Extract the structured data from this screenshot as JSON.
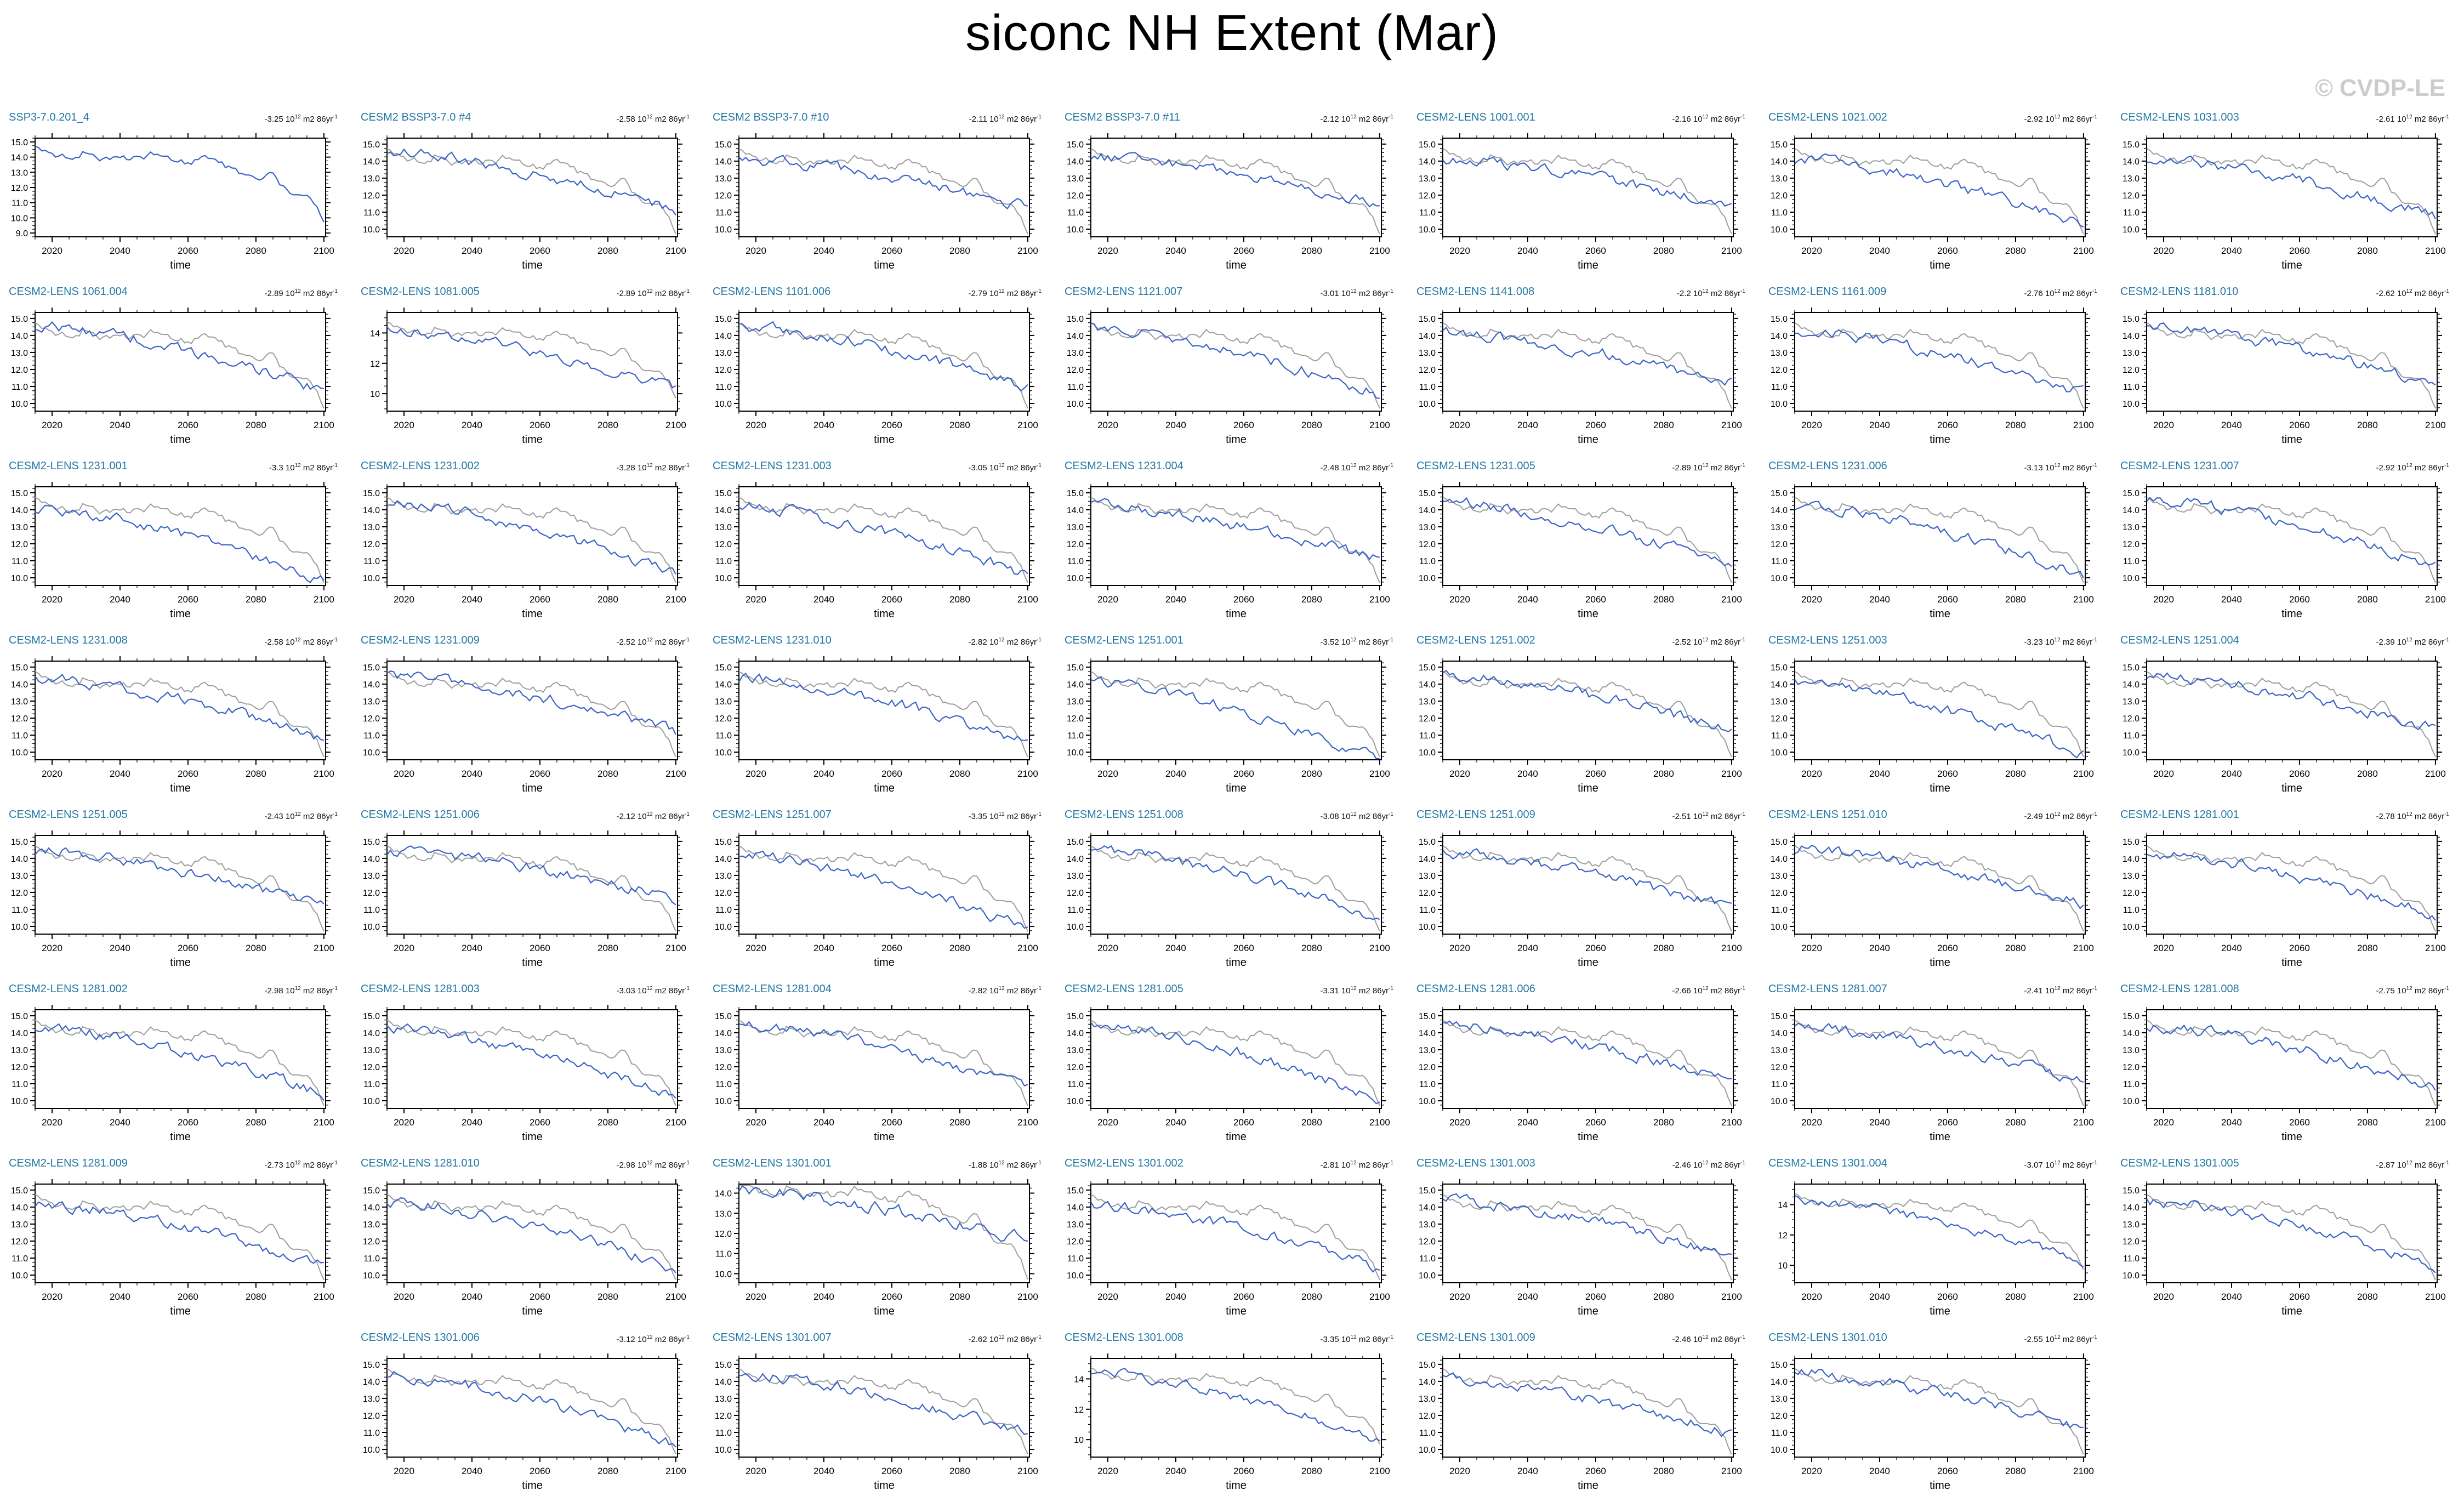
{
  "page": {
    "title": "siconc NH Extent (Mar)",
    "watermark": "© CVDP-LE"
  },
  "colors": {
    "member_line": "#3c64c8",
    "reference_line": "#9e9e9e",
    "panel_title": "#2278a5",
    "axis": "#000000",
    "watermark": "#cccccc"
  },
  "trend_units": {
    "a": " 10",
    "e1": "12",
    "b": " m2 86yr",
    "e2": "-1"
  },
  "chart_data": {
    "type": "line",
    "title": "siconc NH Extent (Mar)",
    "xlabel": "time",
    "ylabel": "",
    "x_range": [
      2015,
      2100
    ],
    "x_major_ticks": [
      2020,
      2040,
      2060,
      2080,
      2100
    ],
    "x_minor_step": 5,
    "grid": false,
    "legend": "none",
    "units": "10^12 m2",
    "trend_units_label": "10^12 m2 86yr^-1",
    "series_meaning": {
      "blue": "ensemble member NH sea-ice extent (March)",
      "gray": "reference SSP3-7.0.201_4 NH sea-ice extent (March)"
    },
    "x_years_sampled": [
      2015,
      2020,
      2025,
      2030,
      2035,
      2040,
      2045,
      2050,
      2055,
      2060,
      2065,
      2070,
      2075,
      2080,
      2085,
      2090,
      2095,
      2100
    ],
    "reference_series": {
      "name": "SSP3-7.0.201_4",
      "values": [
        14.55,
        14.2,
        14.0,
        14.45,
        13.9,
        14.1,
        13.9,
        14.2,
        13.9,
        13.7,
        13.9,
        13.55,
        13.0,
        12.6,
        12.85,
        11.6,
        11.75,
        10.0
      ]
    },
    "ystyles": {
      "std": {
        "min": 9.55,
        "max": 15.35,
        "labels": [
          10,
          11,
          12,
          13,
          14,
          15
        ],
        "fmt": 1,
        "minor": 0.25
      },
      "first": {
        "min": 8.75,
        "max": 15.25,
        "labels": [
          9,
          10,
          11,
          12,
          13,
          14,
          15
        ],
        "fmt": 1,
        "minor": 0.25
      },
      "even": {
        "min": 8.85,
        "max": 15.35,
        "labels": [
          10,
          12,
          14
        ],
        "fmt": 0,
        "minor": 0.5
      },
      "low": {
        "min": 9.55,
        "max": 14.45,
        "labels": [
          10,
          11,
          12,
          13,
          14
        ],
        "fmt": 1,
        "minor": 0.25
      }
    },
    "panels": [
      {
        "row": 1,
        "col": 1,
        "title": "SSP3-7.0.201_4",
        "trend": "-3.25",
        "trend_value": -3.25,
        "ystyle": "first",
        "has_ref": false
      },
      {
        "row": 1,
        "col": 2,
        "title": "CESM2 BSSP3-7.0 #4",
        "trend": "-2.58",
        "trend_value": -2.58,
        "ystyle": "std",
        "has_ref": true
      },
      {
        "row": 1,
        "col": 3,
        "title": "CESM2 BSSP3-7.0 #10",
        "trend": "-2.11",
        "trend_value": -2.11,
        "ystyle": "std",
        "has_ref": true
      },
      {
        "row": 1,
        "col": 4,
        "title": "CESM2 BSSP3-7.0 #11",
        "trend": "-2.12",
        "trend_value": -2.12,
        "ystyle": "std",
        "has_ref": true
      },
      {
        "row": 1,
        "col": 5,
        "title": "CESM2-LENS 1001.001",
        "trend": "-2.16",
        "trend_value": -2.16,
        "ystyle": "std",
        "has_ref": true
      },
      {
        "row": 1,
        "col": 6,
        "title": "CESM2-LENS 1021.002",
        "trend": "-2.92",
        "trend_value": -2.92,
        "ystyle": "std",
        "has_ref": true
      },
      {
        "row": 1,
        "col": 7,
        "title": "CESM2-LENS 1031.003",
        "trend": "-2.61",
        "trend_value": -2.61,
        "ystyle": "std",
        "has_ref": true
      },
      {
        "row": 2,
        "col": 1,
        "title": "CESM2-LENS 1061.004",
        "trend": "-2.89",
        "trend_value": -2.89,
        "ystyle": "std",
        "has_ref": true
      },
      {
        "row": 2,
        "col": 2,
        "title": "CESM2-LENS 1081.005",
        "trend": "-2.89",
        "trend_value": -2.89,
        "ystyle": "even",
        "has_ref": true
      },
      {
        "row": 2,
        "col": 3,
        "title": "CESM2-LENS 1101.006",
        "trend": "-2.79",
        "trend_value": -2.79,
        "ystyle": "std",
        "has_ref": true
      },
      {
        "row": 2,
        "col": 4,
        "title": "CESM2-LENS 1121.007",
        "trend": "-3.01",
        "trend_value": -3.01,
        "ystyle": "std",
        "has_ref": true
      },
      {
        "row": 2,
        "col": 5,
        "title": "CESM2-LENS 1141.008",
        "trend": "-2.2",
        "trend_value": -2.2,
        "ystyle": "std",
        "has_ref": true
      },
      {
        "row": 2,
        "col": 6,
        "title": "CESM2-LENS 1161.009",
        "trend": "-2.76",
        "trend_value": -2.76,
        "ystyle": "std",
        "has_ref": true
      },
      {
        "row": 2,
        "col": 7,
        "title": "CESM2-LENS 1181.010",
        "trend": "-2.62",
        "trend_value": -2.62,
        "ystyle": "std",
        "has_ref": true
      },
      {
        "row": 3,
        "col": 1,
        "title": "CESM2-LENS 1231.001",
        "trend": "-3.3",
        "trend_value": -3.3,
        "ystyle": "std",
        "has_ref": true
      },
      {
        "row": 3,
        "col": 2,
        "title": "CESM2-LENS 1231.002",
        "trend": "-3.28",
        "trend_value": -3.28,
        "ystyle": "std",
        "has_ref": true
      },
      {
        "row": 3,
        "col": 3,
        "title": "CESM2-LENS 1231.003",
        "trend": "-3.05",
        "trend_value": -3.05,
        "ystyle": "std",
        "has_ref": true
      },
      {
        "row": 3,
        "col": 4,
        "title": "CESM2-LENS 1231.004",
        "trend": "-2.48",
        "trend_value": -2.48,
        "ystyle": "std",
        "has_ref": true
      },
      {
        "row": 3,
        "col": 5,
        "title": "CESM2-LENS 1231.005",
        "trend": "-2.89",
        "trend_value": -2.89,
        "ystyle": "std",
        "has_ref": true
      },
      {
        "row": 3,
        "col": 6,
        "title": "CESM2-LENS 1231.006",
        "trend": "-3.13",
        "trend_value": -3.13,
        "ystyle": "std",
        "has_ref": true
      },
      {
        "row": 3,
        "col": 7,
        "title": "CESM2-LENS 1231.007",
        "trend": "-2.92",
        "trend_value": -2.92,
        "ystyle": "std",
        "has_ref": true
      },
      {
        "row": 4,
        "col": 1,
        "title": "CESM2-LENS 1231.008",
        "trend": "-2.58",
        "trend_value": -2.58,
        "ystyle": "std",
        "has_ref": true
      },
      {
        "row": 4,
        "col": 2,
        "title": "CESM2-LENS 1231.009",
        "trend": "-2.52",
        "trend_value": -2.52,
        "ystyle": "std",
        "has_ref": true
      },
      {
        "row": 4,
        "col": 3,
        "title": "CESM2-LENS 1231.010",
        "trend": "-2.82",
        "trend_value": -2.82,
        "ystyle": "std",
        "has_ref": true
      },
      {
        "row": 4,
        "col": 4,
        "title": "CESM2-LENS 1251.001",
        "trend": "-3.52",
        "trend_value": -3.52,
        "ystyle": "std",
        "has_ref": true
      },
      {
        "row": 4,
        "col": 5,
        "title": "CESM2-LENS 1251.002",
        "trend": "-2.52",
        "trend_value": -2.52,
        "ystyle": "std",
        "has_ref": true
      },
      {
        "row": 4,
        "col": 6,
        "title": "CESM2-LENS 1251.003",
        "trend": "-3.23",
        "trend_value": -3.23,
        "ystyle": "std",
        "has_ref": true
      },
      {
        "row": 4,
        "col": 7,
        "title": "CESM2-LENS 1251.004",
        "trend": "-2.39",
        "trend_value": -2.39,
        "ystyle": "std",
        "has_ref": true
      },
      {
        "row": 5,
        "col": 1,
        "title": "CESM2-LENS 1251.005",
        "trend": "-2.43",
        "trend_value": -2.43,
        "ystyle": "std",
        "has_ref": true
      },
      {
        "row": 5,
        "col": 2,
        "title": "CESM2-LENS 1251.006",
        "trend": "-2.12",
        "trend_value": -2.12,
        "ystyle": "std",
        "has_ref": true
      },
      {
        "row": 5,
        "col": 3,
        "title": "CESM2-LENS 1251.007",
        "trend": "-3.35",
        "trend_value": -3.35,
        "ystyle": "std",
        "has_ref": true
      },
      {
        "row": 5,
        "col": 4,
        "title": "CESM2-LENS 1251.008",
        "trend": "-3.08",
        "trend_value": -3.08,
        "ystyle": "std",
        "has_ref": true
      },
      {
        "row": 5,
        "col": 5,
        "title": "CESM2-LENS 1251.009",
        "trend": "-2.51",
        "trend_value": -2.51,
        "ystyle": "std",
        "has_ref": true
      },
      {
        "row": 5,
        "col": 6,
        "title": "CESM2-LENS 1251.010",
        "trend": "-2.49",
        "trend_value": -2.49,
        "ystyle": "std",
        "has_ref": true
      },
      {
        "row": 5,
        "col": 7,
        "title": "CESM2-LENS 1281.001",
        "trend": "-2.78",
        "trend_value": -2.78,
        "ystyle": "std",
        "has_ref": true
      },
      {
        "row": 6,
        "col": 1,
        "title": "CESM2-LENS 1281.002",
        "trend": "-2.98",
        "trend_value": -2.98,
        "ystyle": "std",
        "has_ref": true
      },
      {
        "row": 6,
        "col": 2,
        "title": "CESM2-LENS 1281.003",
        "trend": "-3.03",
        "trend_value": -3.03,
        "ystyle": "std",
        "has_ref": true
      },
      {
        "row": 6,
        "col": 3,
        "title": "CESM2-LENS 1281.004",
        "trend": "-2.82",
        "trend_value": -2.82,
        "ystyle": "std",
        "has_ref": true
      },
      {
        "row": 6,
        "col": 4,
        "title": "CESM2-LENS 1281.005",
        "trend": "-3.31",
        "trend_value": -3.31,
        "ystyle": "std",
        "has_ref": true
      },
      {
        "row": 6,
        "col": 5,
        "title": "CESM2-LENS 1281.006",
        "trend": "-2.66",
        "trend_value": -2.66,
        "ystyle": "std",
        "has_ref": true
      },
      {
        "row": 6,
        "col": 6,
        "title": "CESM2-LENS 1281.007",
        "trend": "-2.41",
        "trend_value": -2.41,
        "ystyle": "std",
        "has_ref": true
      },
      {
        "row": 6,
        "col": 7,
        "title": "CESM2-LENS 1281.008",
        "trend": "-2.75",
        "trend_value": -2.75,
        "ystyle": "std",
        "has_ref": true
      },
      {
        "row": 7,
        "col": 1,
        "title": "CESM2-LENS 1281.009",
        "trend": "-2.73",
        "trend_value": -2.73,
        "ystyle": "std",
        "has_ref": true
      },
      {
        "row": 7,
        "col": 2,
        "title": "CESM2-LENS 1281.010",
        "trend": "-2.98",
        "trend_value": -2.98,
        "ystyle": "std",
        "has_ref": true
      },
      {
        "row": 7,
        "col": 3,
        "title": "CESM2-LENS 1301.001",
        "trend": "-1.88",
        "trend_value": -1.88,
        "ystyle": "low",
        "has_ref": true
      },
      {
        "row": 7,
        "col": 4,
        "title": "CESM2-LENS 1301.002",
        "trend": "-2.81",
        "trend_value": -2.81,
        "ystyle": "std",
        "has_ref": true
      },
      {
        "row": 7,
        "col": 5,
        "title": "CESM2-LENS 1301.003",
        "trend": "-2.46",
        "trend_value": -2.46,
        "ystyle": "std",
        "has_ref": true
      },
      {
        "row": 7,
        "col": 6,
        "title": "CESM2-LENS 1301.004",
        "trend": "-3.07",
        "trend_value": -3.07,
        "ystyle": "even",
        "has_ref": true
      },
      {
        "row": 7,
        "col": 7,
        "title": "CESM2-LENS 1301.005",
        "trend": "-2.87",
        "trend_value": -2.87,
        "ystyle": "std",
        "has_ref": true
      },
      {
        "row": 8,
        "col": 2,
        "title": "CESM2-LENS 1301.006",
        "trend": "-3.12",
        "trend_value": -3.12,
        "ystyle": "std",
        "has_ref": true
      },
      {
        "row": 8,
        "col": 3,
        "title": "CESM2-LENS 1301.007",
        "trend": "-2.62",
        "trend_value": -2.62,
        "ystyle": "std",
        "has_ref": true
      },
      {
        "row": 8,
        "col": 4,
        "title": "CESM2-LENS 1301.008",
        "trend": "-3.35",
        "trend_value": -3.35,
        "ystyle": "even",
        "has_ref": true
      },
      {
        "row": 8,
        "col": 5,
        "title": "CESM2-LENS 1301.009",
        "trend": "-2.46",
        "trend_value": -2.46,
        "ystyle": "std",
        "has_ref": true
      },
      {
        "row": 8,
        "col": 6,
        "title": "CESM2-LENS 1301.010",
        "trend": "-2.55",
        "trend_value": -2.55,
        "ystyle": "std",
        "has_ref": true
      }
    ]
  }
}
